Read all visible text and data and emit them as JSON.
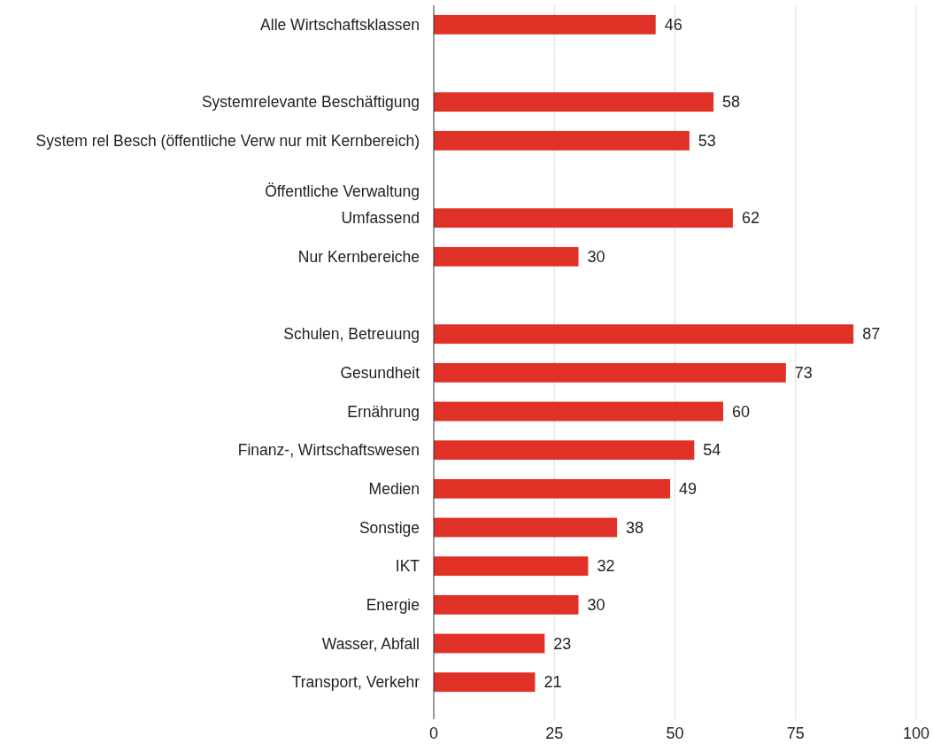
{
  "chart_data": {
    "type": "bar",
    "orientation": "horizontal",
    "categories": [
      "Alle Wirtschaftsklassen",
      null,
      "Systemrelevante Beschäftigung",
      "System rel Besch (öffentliche Verw nur mit Kernbereich)",
      null,
      "Öffentliche Verwaltung\nUmfassend",
      "Nur Kernbereiche",
      null,
      "Schulen, Betreuung",
      "Gesundheit",
      "Ernährung",
      "Finanz-, Wirtschaftswesen",
      "Medien",
      "Sonstige",
      "IKT",
      "Energie",
      "Wasser, Abfall",
      "Transport, Verkehr"
    ],
    "values": [
      46,
      null,
      58,
      53,
      null,
      62,
      30,
      null,
      87,
      73,
      60,
      54,
      49,
      38,
      32,
      30,
      23,
      21
    ],
    "color": "#e03127",
    "xlim": [
      0,
      100
    ],
    "xticks": [
      0,
      25,
      50,
      75,
      100
    ],
    "grid": "x",
    "data_labels": true
  }
}
